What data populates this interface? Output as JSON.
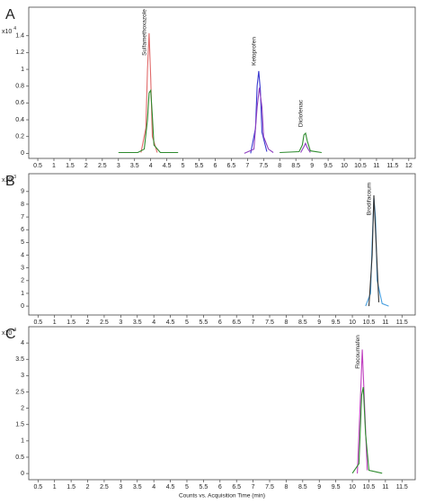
{
  "chart_data": [
    {
      "type": "line",
      "panel": "A",
      "y_multiplier": {
        "base": "x10",
        "exponent": "4"
      },
      "xlim": [
        0.22,
        12.2
      ],
      "ylim": [
        -0.06,
        1.74
      ],
      "xticks": [
        0.5,
        1,
        1.5,
        2,
        2.5,
        3,
        3.5,
        4,
        4.5,
        5,
        5.5,
        6,
        6.5,
        7,
        7.5,
        8,
        8.5,
        9,
        9.5,
        10,
        10.5,
        11,
        11.5,
        12
      ],
      "yticks": [
        0,
        0.2,
        0.4,
        0.6,
        0.8,
        1,
        1.2,
        1.4
      ],
      "series": [
        {
          "name": "Sulfamethoxazole",
          "color": "#e06a6a",
          "x": [
            3.7,
            3.85,
            3.9,
            3.95,
            4.0,
            4.05,
            4.2
          ],
          "values": [
            0.01,
            0.3,
            1.0,
            1.43,
            0.9,
            0.2,
            0.01
          ]
        },
        {
          "color": "#2e8b2e",
          "x": [
            3.0,
            3.6,
            3.8,
            3.9,
            3.95,
            4.0,
            4.05,
            4.1,
            4.3,
            4.85
          ],
          "values": [
            0.01,
            0.01,
            0.05,
            0.4,
            0.72,
            0.75,
            0.45,
            0.1,
            0.01,
            0.01
          ]
        },
        {
          "name": "Ketoprofen",
          "color": "#3a3ad0",
          "x": [
            7.1,
            7.25,
            7.3,
            7.35,
            7.4,
            7.45,
            7.6
          ],
          "values": [
            0,
            0.3,
            0.8,
            0.98,
            0.75,
            0.25,
            0.02
          ]
        },
        {
          "color": "#9040c0",
          "x": [
            6.9,
            7.2,
            7.3,
            7.37,
            7.45,
            7.5,
            7.65,
            7.8
          ],
          "values": [
            0,
            0.05,
            0.55,
            0.78,
            0.55,
            0.2,
            0.05,
            0.01
          ]
        },
        {
          "name": "Diclofenac",
          "color": "#2e8b2e",
          "x": [
            8.0,
            8.6,
            8.7,
            8.75,
            8.8,
            8.85,
            8.95,
            9.3
          ],
          "values": [
            0.01,
            0.02,
            0.1,
            0.22,
            0.24,
            0.15,
            0.03,
            0.01
          ]
        },
        {
          "color": "#9040c0",
          "x": [
            8.65,
            8.75,
            8.8,
            8.85,
            8.95
          ],
          "values": [
            0.01,
            0.08,
            0.12,
            0.07,
            0.01
          ]
        }
      ]
    },
    {
      "type": "line",
      "panel": "B",
      "y_multiplier": {
        "base": "x10",
        "exponent": "3"
      },
      "xlim": [
        0.22,
        11.9
      ],
      "ylim": [
        -0.7,
        10.4
      ],
      "xticks": [
        0.5,
        1,
        1.5,
        2,
        2.5,
        3,
        3.5,
        4,
        4.5,
        5,
        5.5,
        6,
        6.5,
        7,
        7.5,
        8,
        8.5,
        9,
        9.5,
        10,
        10.5,
        11,
        11.5
      ],
      "yticks": [
        0,
        1,
        2,
        3,
        4,
        5,
        6,
        7,
        8,
        9
      ],
      "series": [
        {
          "color": "#4aa0e0",
          "x": [
            10.4,
            10.55,
            10.6,
            10.65,
            10.7,
            10.75,
            10.9,
            11.1
          ],
          "values": [
            0,
            1,
            5,
            8.5,
            7,
            2,
            0.2,
            0
          ]
        },
        {
          "name": "Brodifacoum",
          "color": "#333333",
          "x": [
            10.5,
            10.6,
            10.65,
            10.7,
            10.8
          ],
          "values": [
            0,
            4,
            8.7,
            6,
            0.3
          ]
        }
      ]
    },
    {
      "type": "line",
      "panel": "C",
      "y_multiplier": {
        "base": "x10",
        "exponent": "4"
      },
      "xlim": [
        0.22,
        11.9
      ],
      "ylim": [
        -0.19,
        4.5
      ],
      "xticks": [
        0.5,
        1,
        1.5,
        2,
        2.5,
        3,
        3.5,
        4,
        4.5,
        5,
        5.5,
        6,
        6.5,
        7,
        7.5,
        8,
        8.5,
        9,
        9.5,
        10,
        10.5,
        11,
        11.5
      ],
      "yticks": [
        0,
        0.5,
        1,
        1.5,
        2,
        2.5,
        3,
        3.5,
        4
      ],
      "x_label": "Counts vs. Acquisition Time (min)",
      "series": [
        {
          "name": "Flocoumafen",
          "color": "#c040c0",
          "x": [
            10.15,
            10.25,
            10.3,
            10.35,
            10.45
          ],
          "values": [
            0,
            2.5,
            3.8,
            2.6,
            0.1
          ]
        },
        {
          "color": "#2e8b2e",
          "x": [
            10.0,
            10.2,
            10.28,
            10.33,
            10.4,
            10.5,
            10.9
          ],
          "values": [
            0.01,
            0.3,
            2.4,
            2.65,
            1.2,
            0.1,
            0.01
          ]
        }
      ]
    }
  ]
}
